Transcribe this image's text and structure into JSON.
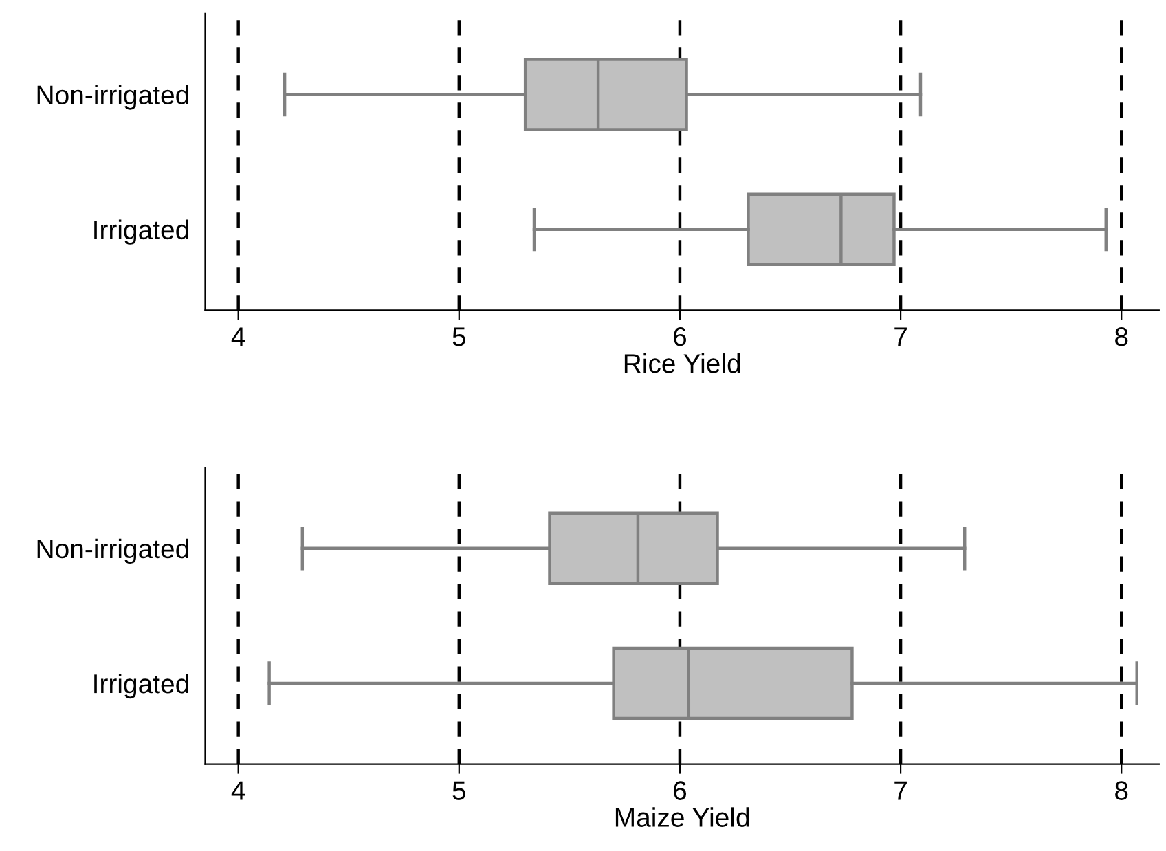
{
  "chart_data": [
    {
      "type": "box",
      "orientation": "horizontal",
      "xlabel": "Rice Yield",
      "categories": [
        "Non-irrigated",
        "Irrigated"
      ],
      "color": "#c0c0c0",
      "xlim": [
        3.85,
        8.17
      ],
      "xticks": [
        4,
        5,
        6,
        7,
        8
      ],
      "grid": "x",
      "boxes": [
        {
          "low": 4.21,
          "q1": 5.3,
          "median": 5.63,
          "q3": 6.03,
          "high": 7.09
        },
        {
          "low": 5.34,
          "q1": 6.31,
          "median": 6.73,
          "q3": 6.97,
          "high": 7.93
        }
      ]
    },
    {
      "type": "box",
      "orientation": "horizontal",
      "xlabel": "Maize Yield",
      "categories": [
        "Non-irrigated",
        "Irrigated"
      ],
      "color": "#c0c0c0",
      "xlim": [
        3.85,
        8.17
      ],
      "xticks": [
        4,
        5,
        6,
        7,
        8
      ],
      "grid": "x",
      "boxes": [
        {
          "low": 4.29,
          "q1": 5.41,
          "median": 5.81,
          "q3": 6.17,
          "high": 7.29
        },
        {
          "low": 4.14,
          "q1": 5.7,
          "median": 6.04,
          "q3": 6.78,
          "high": 8.07
        }
      ]
    }
  ]
}
